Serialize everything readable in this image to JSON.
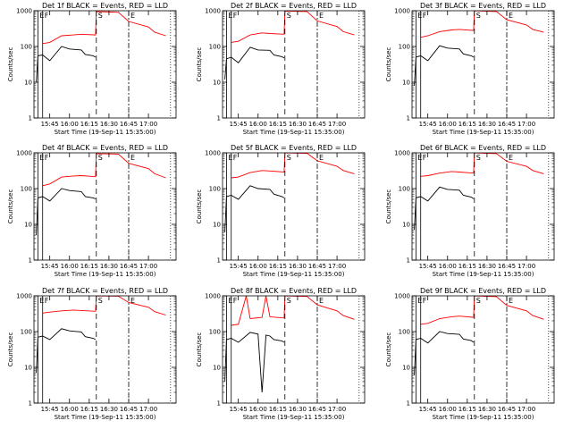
{
  "chart_data": [
    {
      "type": "line",
      "title": "Det 1f BLACK = Events, RED = LLD",
      "xlabel": "Start Time (19-Sep-11 15:35:00)",
      "ylabel": "Counts/sec",
      "xticks": [
        "15:45",
        "16:00",
        "16:15",
        "16:30",
        "16:45",
        "17:00"
      ],
      "yticks": [
        "1",
        "10",
        "100",
        "1000"
      ],
      "ylim": [
        1,
        1000
      ],
      "markers": [
        "E",
        "F",
        "S",
        "E"
      ],
      "series": [
        {
          "color": "#ff0000",
          "values": [
            [
              15.66,
              120
            ],
            [
              15.75,
              130
            ],
            [
              15.9,
              200
            ],
            [
              16.05,
              210
            ],
            [
              16.15,
              220
            ],
            [
              16.33,
              210
            ],
            [
              16.34,
              950
            ],
            [
              16.62,
              900
            ],
            [
              16.75,
              500
            ],
            [
              17.0,
              350
            ],
            [
              17.08,
              250
            ],
            [
              17.22,
              200
            ]
          ]
        },
        {
          "color": "#000000",
          "values": [
            [
              15.58,
              10
            ],
            [
              15.6,
              55
            ],
            [
              15.66,
              58
            ],
            [
              15.75,
              40
            ],
            [
              15.9,
              100
            ],
            [
              16.0,
              85
            ],
            [
              16.15,
              80
            ],
            [
              16.2,
              60
            ],
            [
              16.3,
              55
            ],
            [
              16.33,
              50
            ]
          ]
        }
      ]
    },
    {
      "type": "line",
      "title": "Det 2f BLACK = Events, RED = LLD",
      "xlabel": "Start Time (19-Sep-11 15:35:00)",
      "ylabel": "Counts/sec",
      "xticks": [
        "15:45",
        "16:00",
        "16:15",
        "16:30",
        "16:45",
        "17:00"
      ],
      "yticks": [
        "1",
        "10",
        "100",
        "1000"
      ],
      "ylim": [
        1,
        1000
      ],
      "markers": [
        "E",
        "F",
        "S",
        "E"
      ],
      "series": [
        {
          "color": "#ff0000",
          "values": [
            [
              15.66,
              130
            ],
            [
              15.75,
              140
            ],
            [
              15.9,
              210
            ],
            [
              16.05,
              240
            ],
            [
              16.15,
              230
            ],
            [
              16.33,
              220
            ],
            [
              16.34,
              980
            ],
            [
              16.62,
              950
            ],
            [
              16.75,
              520
            ],
            [
              17.0,
              360
            ],
            [
              17.08,
              260
            ],
            [
              17.22,
              210
            ]
          ]
        },
        {
          "color": "#000000",
          "values": [
            [
              15.58,
              12
            ],
            [
              15.6,
              45
            ],
            [
              15.66,
              50
            ],
            [
              15.75,
              35
            ],
            [
              15.9,
              95
            ],
            [
              16.0,
              80
            ],
            [
              16.15,
              78
            ],
            [
              16.2,
              58
            ],
            [
              16.3,
              52
            ],
            [
              16.33,
              48
            ]
          ]
        }
      ]
    },
    {
      "type": "line",
      "title": "Det 3f BLACK = Events, RED = LLD",
      "xlabel": "Start Time (19-Sep-11 15:35:00)",
      "ylabel": "Counts/sec",
      "xticks": [
        "15:45",
        "16:00",
        "16:15",
        "16:30",
        "16:45",
        "17:00"
      ],
      "yticks": [
        "1",
        "10",
        "100",
        "1000"
      ],
      "ylim": [
        1,
        1000
      ],
      "markers": [
        "E",
        "F",
        "S",
        "E"
      ],
      "series": [
        {
          "color": "#ff0000",
          "values": [
            [
              15.66,
              180
            ],
            [
              15.75,
              200
            ],
            [
              15.9,
              260
            ],
            [
              16.05,
              290
            ],
            [
              16.15,
              300
            ],
            [
              16.33,
              280
            ],
            [
              16.34,
              1000
            ],
            [
              16.62,
              950
            ],
            [
              16.75,
              560
            ],
            [
              17.0,
              400
            ],
            [
              17.08,
              300
            ],
            [
              17.22,
              250
            ]
          ]
        },
        {
          "color": "#000000",
          "values": [
            [
              15.58,
              8
            ],
            [
              15.6,
              50
            ],
            [
              15.66,
              55
            ],
            [
              15.75,
              40
            ],
            [
              15.9,
              105
            ],
            [
              16.0,
              90
            ],
            [
              16.15,
              85
            ],
            [
              16.2,
              62
            ],
            [
              16.3,
              55
            ],
            [
              16.33,
              50
            ]
          ]
        }
      ]
    },
    {
      "type": "line",
      "title": "Det 4f BLACK = Events, RED = LLD",
      "xlabel": "Start Time (19-Sep-11 15:35:00)",
      "ylabel": "Counts/sec",
      "xticks": [
        "15:45",
        "16:00",
        "16:15",
        "16:30",
        "16:45",
        "17:00"
      ],
      "yticks": [
        "1",
        "10",
        "100",
        "1000"
      ],
      "ylim": [
        1,
        1000
      ],
      "markers": [
        "E",
        "F",
        "S",
        "E"
      ],
      "series": [
        {
          "color": "#ff0000",
          "values": [
            [
              15.66,
              120
            ],
            [
              15.75,
              135
            ],
            [
              15.9,
              210
            ],
            [
              16.05,
              225
            ],
            [
              16.15,
              230
            ],
            [
              16.33,
              215
            ],
            [
              16.34,
              950
            ],
            [
              16.62,
              920
            ],
            [
              16.75,
              510
            ],
            [
              17.0,
              360
            ],
            [
              17.08,
              260
            ],
            [
              17.22,
              200
            ]
          ]
        },
        {
          "color": "#000000",
          "values": [
            [
              15.58,
              5
            ],
            [
              15.6,
              55
            ],
            [
              15.66,
              60
            ],
            [
              15.75,
              45
            ],
            [
              15.9,
              100
            ],
            [
              16.0,
              88
            ],
            [
              16.15,
              82
            ],
            [
              16.2,
              60
            ],
            [
              16.3,
              55
            ],
            [
              16.33,
              52
            ]
          ]
        }
      ]
    },
    {
      "type": "line",
      "title": "Det 5f BLACK = Events, RED = LLD",
      "xlabel": "Start Time (19-Sep-11 15:35:00)",
      "ylabel": "Counts/sec",
      "xticks": [
        "15:45",
        "16:00",
        "16:15",
        "16:30",
        "16:45",
        "17:00"
      ],
      "yticks": [
        "1",
        "10",
        "100",
        "1000"
      ],
      "ylim": [
        1,
        1000
      ],
      "markers": [
        "E",
        "F",
        "S",
        "E"
      ],
      "series": [
        {
          "color": "#ff0000",
          "values": [
            [
              15.66,
              200
            ],
            [
              15.75,
              210
            ],
            [
              15.9,
              280
            ],
            [
              16.05,
              320
            ],
            [
              16.15,
              310
            ],
            [
              16.33,
              290
            ],
            [
              16.34,
              1000
            ],
            [
              16.62,
              970
            ],
            [
              16.75,
              600
            ],
            [
              17.0,
              420
            ],
            [
              17.08,
              320
            ],
            [
              17.22,
              260
            ]
          ]
        },
        {
          "color": "#000000",
          "values": [
            [
              15.58,
              6
            ],
            [
              15.6,
              60
            ],
            [
              15.66,
              65
            ],
            [
              15.75,
              50
            ],
            [
              15.9,
              120
            ],
            [
              16.0,
              100
            ],
            [
              16.15,
              95
            ],
            [
              16.2,
              70
            ],
            [
              16.3,
              60
            ],
            [
              16.33,
              55
            ]
          ]
        }
      ]
    },
    {
      "type": "line",
      "title": "Det 6f BLACK = Events, RED = LLD",
      "xlabel": "Start Time (19-Sep-11 15:35:00)",
      "ylabel": "Counts/sec",
      "xticks": [
        "15:45",
        "16:00",
        "16:15",
        "16:30",
        "16:45",
        "17:00"
      ],
      "yticks": [
        "1",
        "10",
        "100",
        "1000"
      ],
      "ylim": [
        1,
        1000
      ],
      "markers": [
        "E",
        "F",
        "S",
        "E"
      ],
      "series": [
        {
          "color": "#ff0000",
          "values": [
            [
              15.66,
              220
            ],
            [
              15.75,
              230
            ],
            [
              15.9,
              270
            ],
            [
              16.05,
              300
            ],
            [
              16.15,
              290
            ],
            [
              16.33,
              270
            ],
            [
              16.34,
              1000
            ],
            [
              16.62,
              950
            ],
            [
              16.75,
              580
            ],
            [
              17.0,
              420
            ],
            [
              17.08,
              320
            ],
            [
              17.22,
              260
            ]
          ]
        },
        {
          "color": "#000000",
          "values": [
            [
              15.58,
              7
            ],
            [
              15.6,
              55
            ],
            [
              15.66,
              60
            ],
            [
              15.75,
              45
            ],
            [
              15.9,
              110
            ],
            [
              16.0,
              95
            ],
            [
              16.15,
              90
            ],
            [
              16.2,
              65
            ],
            [
              16.3,
              58
            ],
            [
              16.33,
              52
            ]
          ]
        }
      ]
    },
    {
      "type": "line",
      "title": "Det 7f BLACK = Events, RED = LLD",
      "xlabel": "Start Time (19-Sep-11 15:35:00)",
      "ylabel": "Counts/sec",
      "xticks": [
        "15:45",
        "16:00",
        "16:15",
        "16:30",
        "16:45",
        "17:00"
      ],
      "yticks": [
        "1",
        "10",
        "100",
        "1000"
      ],
      "ylim": [
        1,
        1000
      ],
      "markers": [
        "E",
        "F",
        "S",
        "E"
      ],
      "series": [
        {
          "color": "#ff0000",
          "values": [
            [
              15.66,
              330
            ],
            [
              15.75,
              350
            ],
            [
              15.9,
              380
            ],
            [
              16.05,
              400
            ],
            [
              16.15,
              390
            ],
            [
              16.33,
              370
            ],
            [
              16.34,
              1000
            ],
            [
              16.62,
              980
            ],
            [
              16.75,
              650
            ],
            [
              17.0,
              480
            ],
            [
              17.08,
              360
            ],
            [
              17.22,
              290
            ]
          ]
        },
        {
          "color": "#000000",
          "values": [
            [
              15.58,
              7
            ],
            [
              15.6,
              70
            ],
            [
              15.66,
              75
            ],
            [
              15.75,
              60
            ],
            [
              15.9,
              120
            ],
            [
              16.0,
              105
            ],
            [
              16.15,
              98
            ],
            [
              16.2,
              72
            ],
            [
              16.3,
              65
            ],
            [
              16.33,
              60
            ]
          ]
        }
      ]
    },
    {
      "type": "line",
      "title": "Det 8f BLACK = Events, RED = LLD",
      "xlabel": "Start Time (19-Sep-11 15:35:00)",
      "ylabel": "Counts/sec",
      "xticks": [
        "15:45",
        "16:00",
        "16:15",
        "16:30",
        "16:45",
        "17:00"
      ],
      "yticks": [
        "1",
        "10",
        "100",
        "1000"
      ],
      "ylim": [
        1,
        1000
      ],
      "markers": [
        "E",
        "F",
        "S",
        "E"
      ],
      "series": [
        {
          "color": "#ff0000",
          "values": [
            [
              15.66,
              150
            ],
            [
              15.75,
              160
            ],
            [
              15.85,
              1000
            ],
            [
              15.9,
              230
            ],
            [
              16.05,
              250
            ],
            [
              16.1,
              1000
            ],
            [
              16.15,
              260
            ],
            [
              16.33,
              240
            ],
            [
              16.34,
              1000
            ],
            [
              16.62,
              960
            ],
            [
              16.75,
              560
            ],
            [
              17.0,
              380
            ],
            [
              17.08,
              280
            ],
            [
              17.22,
              220
            ]
          ]
        },
        {
          "color": "#000000",
          "values": [
            [
              15.58,
              4
            ],
            [
              15.6,
              60
            ],
            [
              15.66,
              65
            ],
            [
              15.75,
              50
            ],
            [
              15.9,
              95
            ],
            [
              16.0,
              85
            ],
            [
              16.05,
              2
            ],
            [
              16.1,
              80
            ],
            [
              16.15,
              75
            ],
            [
              16.2,
              60
            ],
            [
              16.3,
              55
            ],
            [
              16.33,
              50
            ]
          ]
        }
      ]
    },
    {
      "type": "line",
      "title": "Det 9f BLACK = Events, RED = LLD",
      "xlabel": "Start Time (19-Sep-11 15:35:00)",
      "ylabel": "Counts/sec",
      "xticks": [
        "15:45",
        "16:00",
        "16:15",
        "16:30",
        "16:45",
        "17:00"
      ],
      "yticks": [
        "1",
        "10",
        "100",
        "1000"
      ],
      "ylim": [
        1,
        1000
      ],
      "markers": [
        "E",
        "F",
        "S",
        "E"
      ],
      "series": [
        {
          "color": "#ff0000",
          "values": [
            [
              15.66,
              160
            ],
            [
              15.75,
              170
            ],
            [
              15.9,
              230
            ],
            [
              16.05,
              260
            ],
            [
              16.15,
              270
            ],
            [
              16.33,
              250
            ],
            [
              16.34,
              1000
            ],
            [
              16.62,
              950
            ],
            [
              16.75,
              540
            ],
            [
              17.0,
              380
            ],
            [
              17.08,
              280
            ],
            [
              17.22,
              220
            ]
          ]
        },
        {
          "color": "#000000",
          "values": [
            [
              15.58,
              6
            ],
            [
              15.6,
              60
            ],
            [
              15.66,
              65
            ],
            [
              15.75,
              48
            ],
            [
              15.9,
              100
            ],
            [
              16.0,
              88
            ],
            [
              16.15,
              84
            ],
            [
              16.2,
              62
            ],
            [
              16.3,
              56
            ],
            [
              16.33,
              50
            ]
          ]
        }
      ]
    }
  ]
}
